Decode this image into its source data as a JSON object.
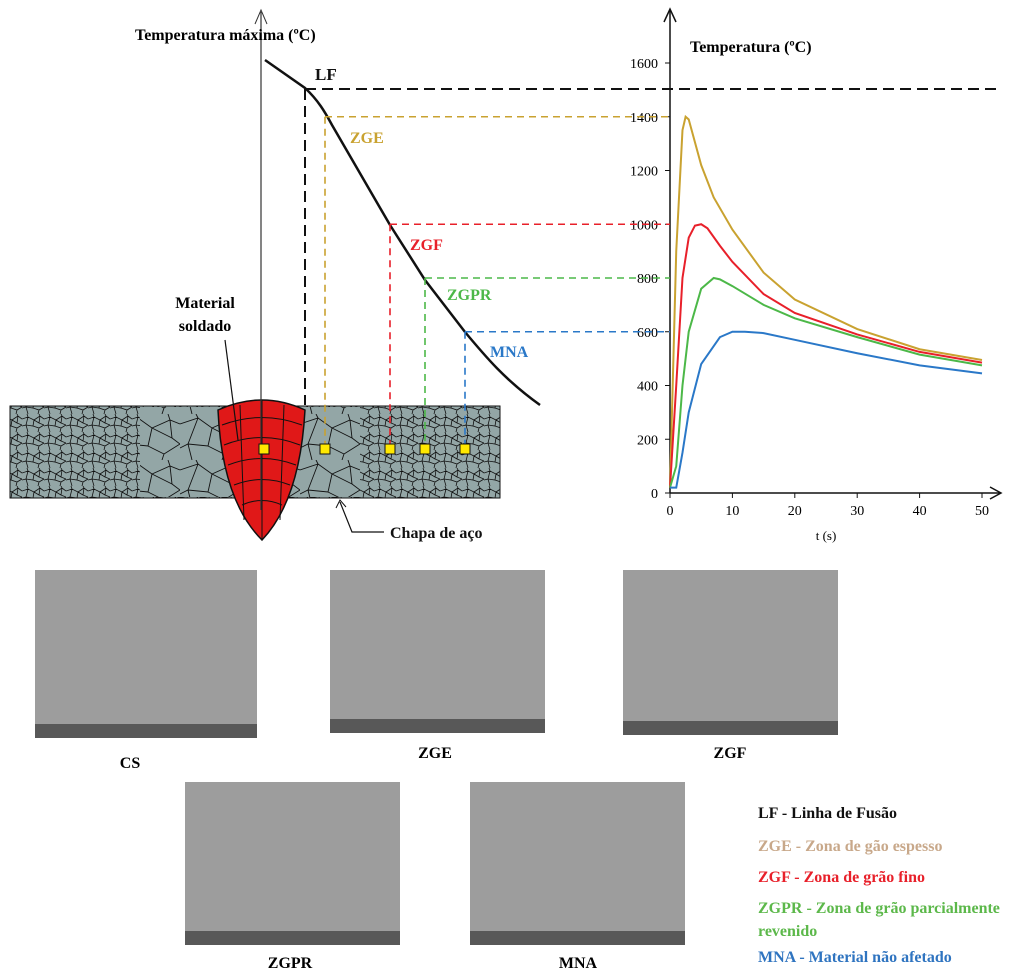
{
  "diagram": {
    "axis_label": "Temperatura máxima (ºC)",
    "lf_label": "LF",
    "weld_label": "Material soldado",
    "plate_label": "Chapa de aço"
  },
  "chart_data": {
    "type": "line",
    "y_label": "Temperatura (ºC)",
    "x_label": "t (s)",
    "xlim": [
      0,
      50
    ],
    "ylim": [
      0,
      1600
    ],
    "xticks": [
      0,
      10,
      20,
      30,
      40,
      50
    ],
    "yticks": [
      0,
      200,
      400,
      600,
      800,
      1000,
      1200,
      1400,
      1600
    ],
    "series": [
      {
        "name": "ZGE",
        "color": "#c9a230",
        "x": [
          0,
          1,
          2,
          2.5,
          3,
          5,
          7,
          10,
          15,
          20,
          30,
          40,
          50
        ],
        "values": [
          20,
          900,
          1350,
          1400,
          1390,
          1220,
          1100,
          980,
          820,
          720,
          610,
          535,
          495
        ]
      },
      {
        "name": "ZGF",
        "color": "#e8202a",
        "x": [
          0,
          1,
          2,
          3,
          4,
          5,
          6,
          8,
          10,
          15,
          20,
          30,
          40,
          50
        ],
        "values": [
          20,
          400,
          800,
          950,
          995,
          1000,
          985,
          920,
          860,
          740,
          670,
          590,
          525,
          485
        ]
      },
      {
        "name": "ZGPR",
        "color": "#4cb848",
        "x": [
          0,
          1,
          2,
          3,
          5,
          7,
          8,
          10,
          15,
          20,
          30,
          40,
          50
        ],
        "values": [
          20,
          100,
          400,
          600,
          760,
          800,
          795,
          770,
          700,
          650,
          580,
          515,
          475
        ]
      },
      {
        "name": "MNA",
        "color": "#2a78c8",
        "x": [
          0,
          1,
          2,
          3,
          5,
          8,
          10,
          12,
          15,
          20,
          30,
          40,
          50
        ],
        "values": [
          20,
          20,
          150,
          300,
          480,
          580,
          600,
          600,
          595,
          570,
          520,
          475,
          445
        ]
      }
    ]
  },
  "micrographs": [
    {
      "label": "CS"
    },
    {
      "label": "ZGE"
    },
    {
      "label": "ZGF"
    },
    {
      "label": "ZGPR"
    },
    {
      "label": "MNA"
    }
  ],
  "legend": [
    {
      "text": "LF - Linha de Fusão",
      "color": "#111111"
    },
    {
      "text": "ZGE - Zona de gão espesso",
      "color": "#c8a88a"
    },
    {
      "text": "ZGF - Zona de grão fino",
      "color": "#e8202a"
    },
    {
      "text": "ZGPR - Zona de grão parcialmente revenido",
      "color": "#5cb84a"
    },
    {
      "text": "MNA - Material não afetado",
      "color": "#2f74c0"
    }
  ]
}
